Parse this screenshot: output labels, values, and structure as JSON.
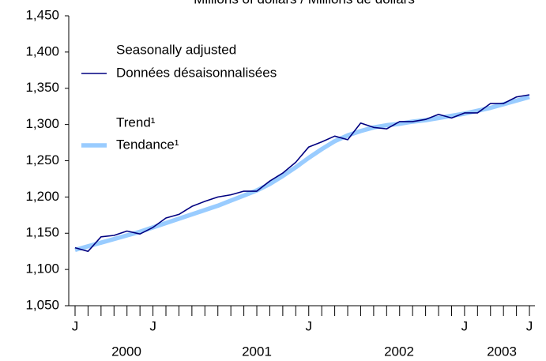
{
  "chart_data": {
    "type": "line",
    "title": "Millions of dollars / Millions de dollars",
    "categories": [
      "J",
      null,
      null,
      null,
      null,
      null,
      "J",
      null,
      null,
      null,
      null,
      null,
      null,
      null,
      null,
      null,
      null,
      null,
      "J",
      null,
      null,
      null,
      null,
      null,
      null,
      null,
      null,
      null,
      null,
      null,
      "J",
      null,
      null,
      null,
      null,
      "J"
    ],
    "x_group_labels": [
      "2000",
      "2001",
      "2002",
      "2003"
    ],
    "series": [
      {
        "name": [
          "Seasonally adjusted",
          "Données désaisonnalisées"
        ],
        "color": "#000080",
        "values": [
          1130,
          1125,
          1145,
          1147,
          1153,
          1149,
          1158,
          1171,
          1176,
          1187,
          1194,
          1200,
          1203,
          1208,
          1208,
          1222,
          1233,
          1248,
          1269,
          1276,
          1284,
          1279,
          1302,
          1296,
          1294,
          1304,
          1304,
          1307,
          1314,
          1309,
          1316,
          1316,
          1329,
          1329,
          1338,
          1341
        ]
      },
      {
        "name": [
          "Trend¹",
          "Tendance¹"
        ],
        "color": "#99ccff",
        "values": [
          1127,
          1132,
          1137,
          1142,
          1147,
          1152,
          1158,
          1164,
          1170,
          1176,
          1182,
          1188,
          1195,
          1202,
          1209,
          1218,
          1229,
          1241,
          1254,
          1266,
          1277,
          1285,
          1291,
          1296,
          1299,
          1301,
          1304,
          1306,
          1309,
          1312,
          1315,
          1319,
          1323,
          1328,
          1333,
          1338
        ]
      }
    ],
    "ylim": [
      1050,
      1450
    ],
    "yticks": [
      {
        "value": 1050,
        "label": "1,050"
      },
      {
        "value": 1100,
        "label": "1,100"
      },
      {
        "value": 1150,
        "label": "1,150"
      },
      {
        "value": 1200,
        "label": "1,200"
      },
      {
        "value": 1250,
        "label": "1,250"
      },
      {
        "value": 1300,
        "label": "1,300"
      },
      {
        "value": 1350,
        "label": "1,350"
      },
      {
        "value": 1400,
        "label": "1,400"
      },
      {
        "value": 1450,
        "label": "1,450"
      }
    ],
    "grid": false
  }
}
